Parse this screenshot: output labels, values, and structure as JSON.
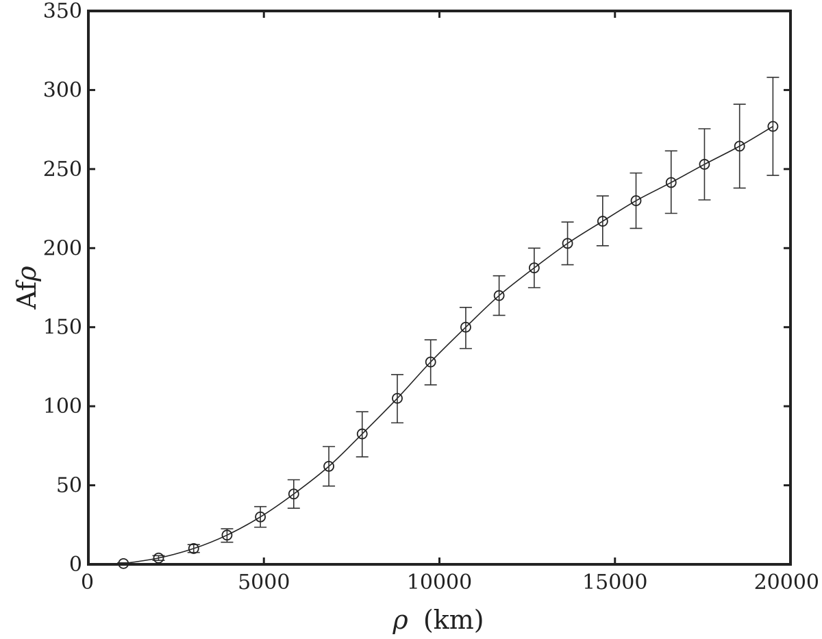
{
  "chart_data": {
    "type": "line",
    "xlabel_symbol": "ρ",
    "xlabel_unit": "(km)",
    "ylabel_text": "Af",
    "ylabel_symbol": "ρ",
    "xlim": [
      0,
      20000
    ],
    "ylim": [
      0,
      350
    ],
    "xticks": [
      0,
      5000,
      10000,
      15000,
      20000
    ],
    "yticks": [
      0,
      50,
      100,
      150,
      200,
      250,
      300,
      350
    ],
    "grid": false,
    "series": [
      {
        "marker": "open-circle",
        "color": "#222222",
        "x": [
          1000,
          2000,
          3000,
          3950,
          4900,
          5850,
          6850,
          7800,
          8800,
          9750,
          10750,
          11700,
          12700,
          13650,
          14650,
          15600,
          16600,
          17550,
          18550,
          19500
        ],
        "y": [
          0.5,
          4,
          10,
          18.5,
          30,
          44.5,
          62,
          82.5,
          105,
          128,
          150,
          170,
          187.5,
          203,
          217,
          230,
          241.5,
          253,
          264.5,
          277
        ],
        "err_low": [
          0.5,
          1.5,
          2.5,
          4.5,
          6.5,
          9,
          12.5,
          14.5,
          15.5,
          14.5,
          13.5,
          12.5,
          12.5,
          13.5,
          15.5,
          17.5,
          19.5,
          22.5,
          26.5,
          31
        ],
        "err_high": [
          0.5,
          1.5,
          2.5,
          4,
          6.5,
          9,
          12.5,
          14,
          15,
          14,
          12.5,
          12.5,
          12.5,
          13.5,
          16,
          17.5,
          20,
          22.5,
          26.5,
          31
        ]
      }
    ]
  }
}
